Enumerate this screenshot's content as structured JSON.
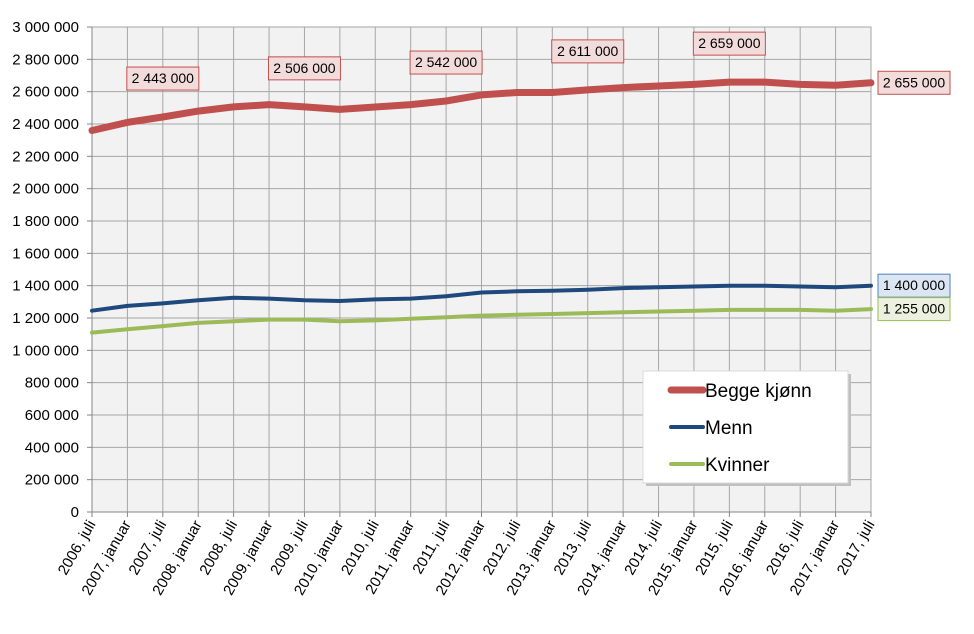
{
  "chart_data": {
    "type": "line",
    "title": "",
    "xlabel": "",
    "ylabel": "",
    "ylim": [
      0,
      3000000
    ],
    "yticks": [
      0,
      200000,
      400000,
      600000,
      800000,
      1000000,
      1200000,
      1400000,
      1600000,
      1800000,
      2000000,
      2200000,
      2400000,
      2600000,
      2800000,
      3000000
    ],
    "ytick_labels": [
      "0",
      "200 000",
      "400 000",
      "600 000",
      "800 000",
      "1 000 000",
      "1 200 000",
      "1 400 000",
      "1 600 000",
      "1 800 000",
      "2 000 000",
      "2 200 000",
      "2 400 000",
      "2 600 000",
      "2 800 000",
      "3 000 000"
    ],
    "categories": [
      "2006, juli",
      "2007, januar",
      "2007, juli",
      "2008, januar",
      "2008, juli",
      "2009, januar",
      "2009, juli",
      "2010, januar",
      "2010, juli",
      "2011, januar",
      "2011, juli",
      "2012, januar",
      "2012, juli",
      "2013, januar",
      "2013, juli",
      "2014, januar",
      "2014, juli",
      "2015, januar",
      "2015, juli",
      "2016, januar",
      "2016, juli",
      "2017, januar",
      "2017, juli"
    ],
    "grid": true,
    "legend_position": "bottom-right",
    "series": [
      {
        "name": "Begge kjønn",
        "color": "#c0504d",
        "values": [
          2360000,
          2410000,
          2443000,
          2480000,
          2506000,
          2520000,
          2506000,
          2490000,
          2505000,
          2520000,
          2542000,
          2580000,
          2595000,
          2595000,
          2611000,
          2625000,
          2635000,
          2645000,
          2659000,
          2659000,
          2645000,
          2640000,
          2655000
        ]
      },
      {
        "name": "Menn",
        "color": "#1f497d",
        "values": [
          1245000,
          1275000,
          1290000,
          1310000,
          1325000,
          1320000,
          1310000,
          1305000,
          1315000,
          1320000,
          1335000,
          1358000,
          1365000,
          1368000,
          1375000,
          1385000,
          1390000,
          1395000,
          1400000,
          1400000,
          1395000,
          1390000,
          1400000
        ]
      },
      {
        "name": "Kvinner",
        "color": "#9bbb59",
        "values": [
          1110000,
          1130000,
          1150000,
          1170000,
          1180000,
          1190000,
          1190000,
          1180000,
          1185000,
          1195000,
          1205000,
          1215000,
          1220000,
          1225000,
          1230000,
          1235000,
          1240000,
          1245000,
          1250000,
          1250000,
          1250000,
          1245000,
          1255000
        ]
      }
    ],
    "annotations": [
      {
        "series": 0,
        "index": 2,
        "text": "2 443 000",
        "fill": "#f2dcdb",
        "border": "#c0504d"
      },
      {
        "series": 0,
        "index": 6,
        "text": "2 506 000",
        "fill": "#f2dcdb",
        "border": "#c0504d"
      },
      {
        "series": 0,
        "index": 10,
        "text": "2 542 000",
        "fill": "#f2dcdb",
        "border": "#c0504d"
      },
      {
        "series": 0,
        "index": 14,
        "text": "2 611 000",
        "fill": "#f2dcdb",
        "border": "#c0504d"
      },
      {
        "series": 0,
        "index": 18,
        "text": "2 659 000",
        "fill": "#f2dcdb",
        "border": "#c0504d"
      },
      {
        "series": 0,
        "index": 22,
        "text": "2 655 000",
        "fill": "#f2dcdb",
        "border": "#c0504d"
      },
      {
        "series": 1,
        "index": 22,
        "text": "1 400 000",
        "fill": "#dce6f2",
        "border": "#4f81bd"
      },
      {
        "series": 2,
        "index": 22,
        "text": "1 255 000",
        "fill": "#ebf1de",
        "border": "#9bbb59"
      }
    ]
  }
}
